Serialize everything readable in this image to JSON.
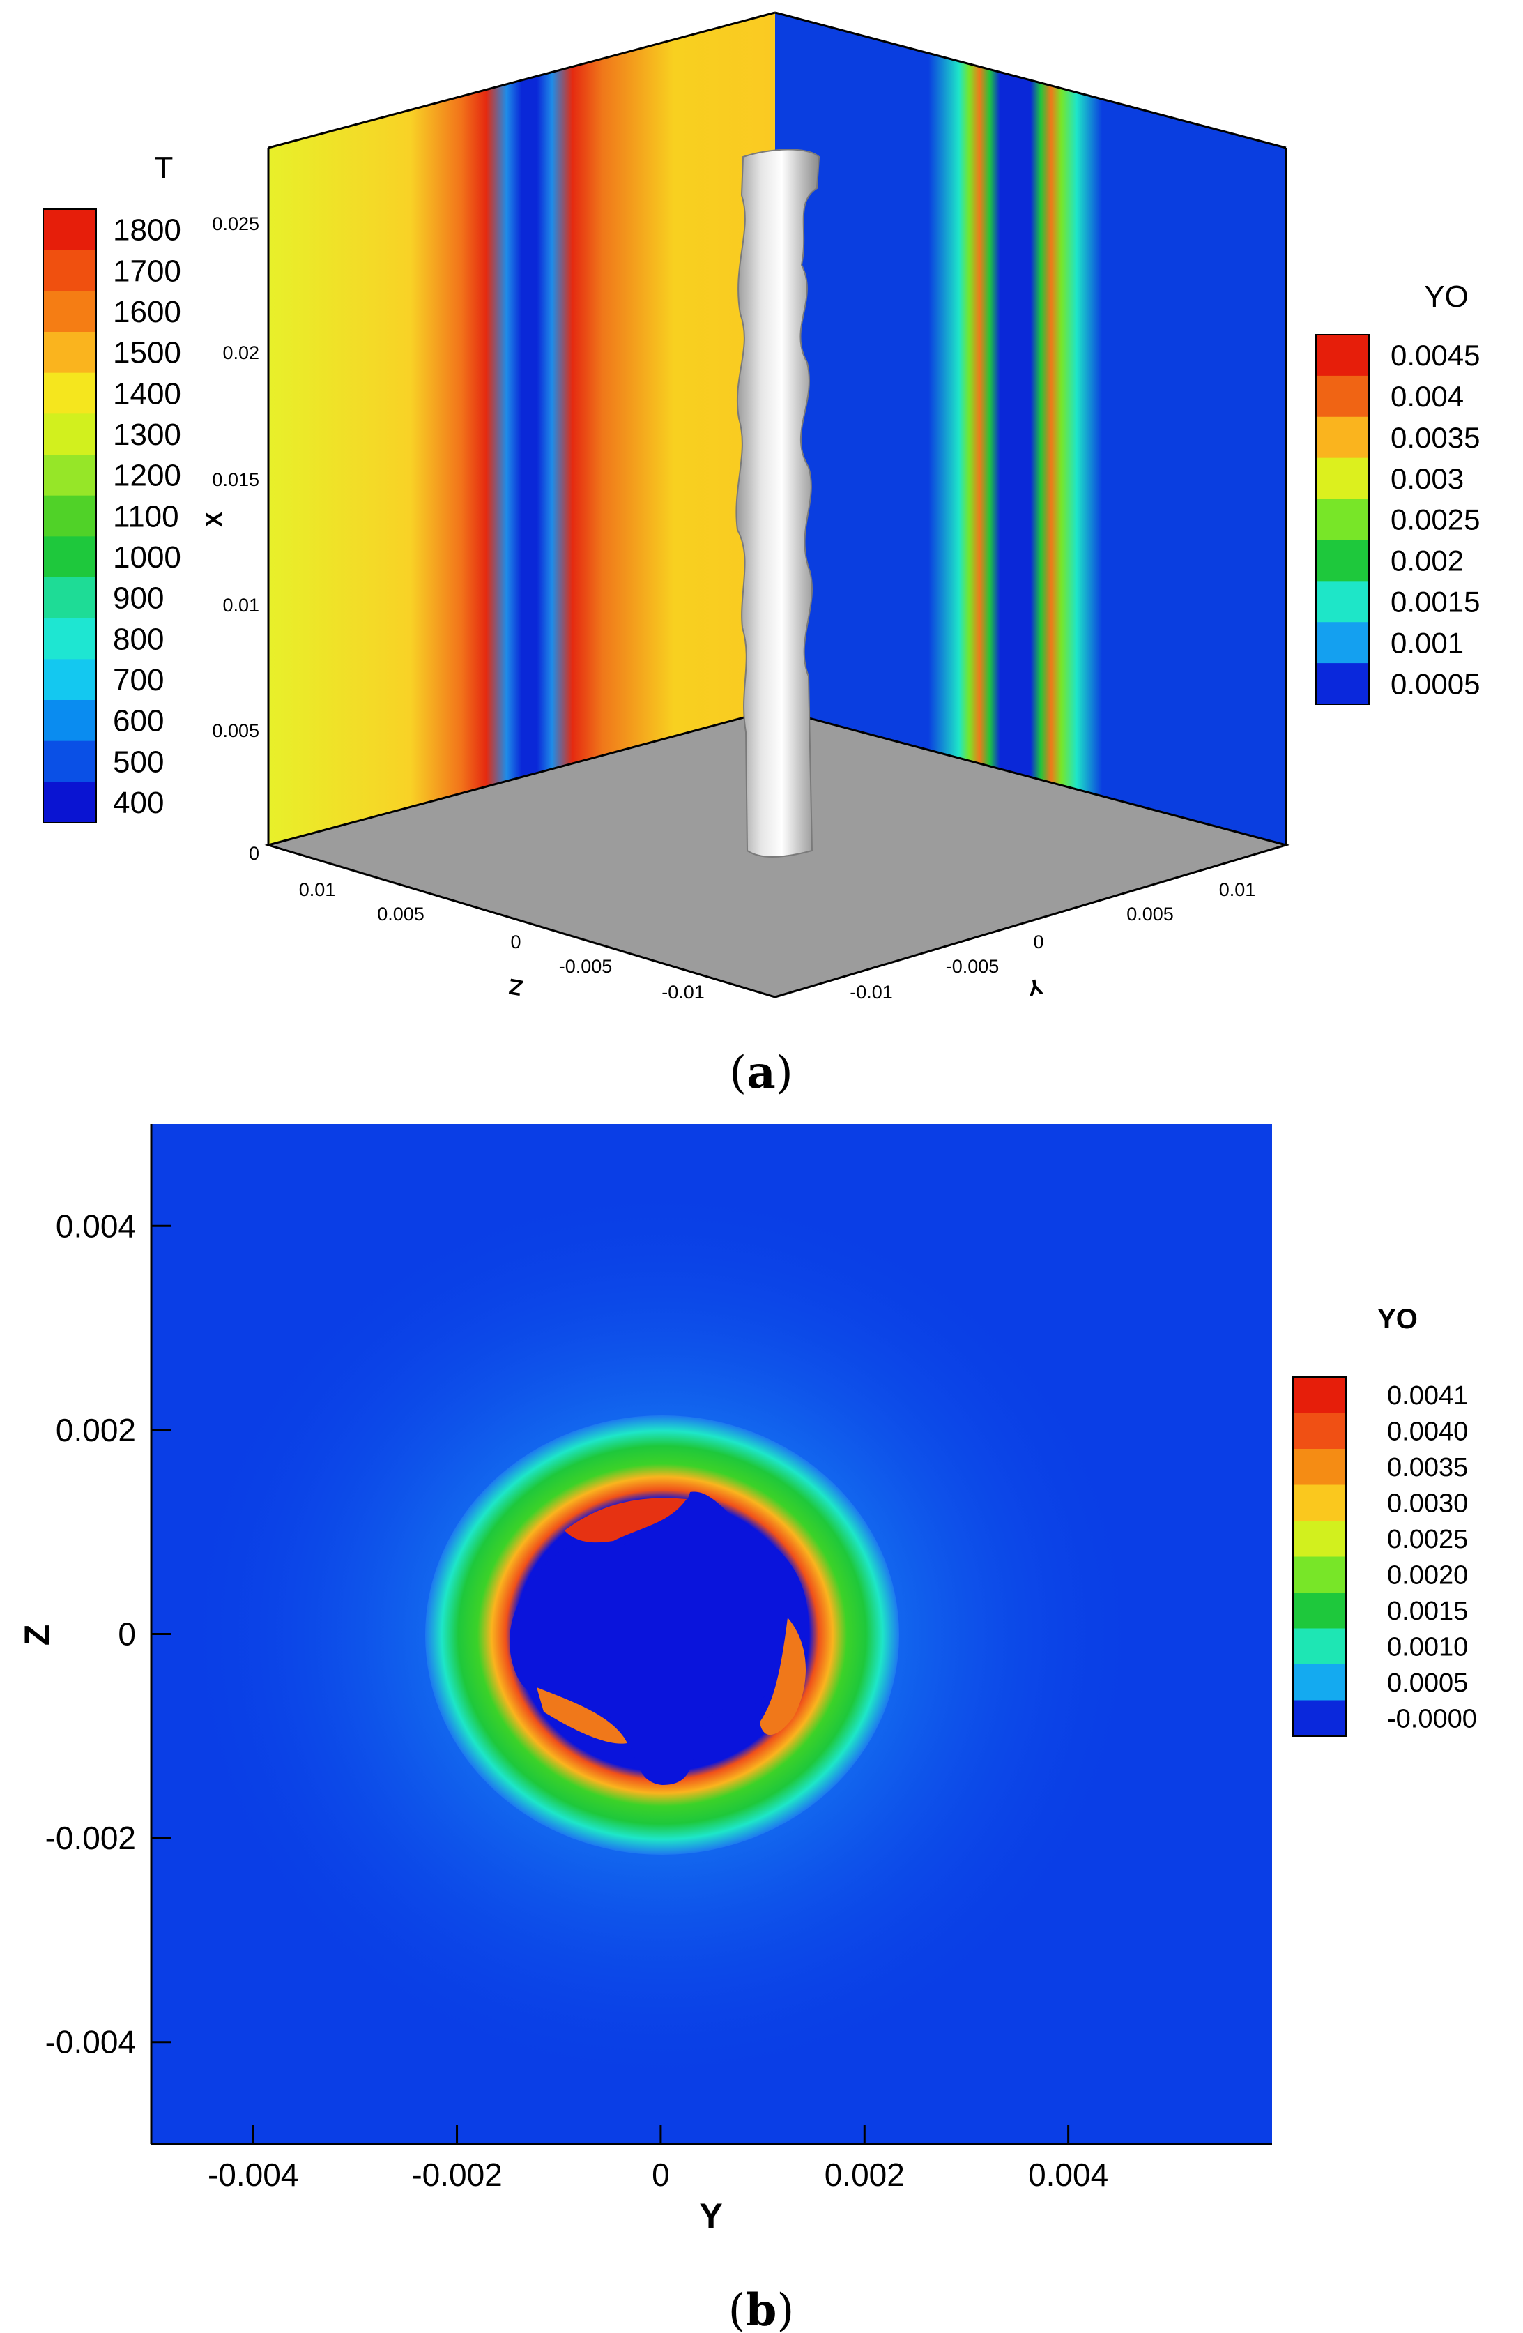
{
  "panels": {
    "a": {
      "caption_open": "(",
      "caption_letter": "a",
      "caption_close": ")",
      "colorbar_T": {
        "title": "T",
        "labels": [
          "1800",
          "1700",
          "1600",
          "1500",
          "1400",
          "1300",
          "1200",
          "1100",
          "1000",
          "900",
          "800",
          "700",
          "600",
          "500",
          "400"
        ],
        "colors": [
          "#e61e0a",
          "#f0500f",
          "#f57d14",
          "#fab41e",
          "#f5e61e",
          "#d2f01e",
          "#96e628",
          "#50d228",
          "#1ec83c",
          "#1edc96",
          "#1ee6d2",
          "#14c8f0",
          "#0a8cf0",
          "#0a50e6",
          "#0a14d2"
        ]
      },
      "colorbar_YO": {
        "title": "YO",
        "labels": [
          "0.0045",
          "0.004",
          "0.0035",
          "0.003",
          "0.0025",
          "0.002",
          "0.0015",
          "0.001",
          "0.0005"
        ],
        "colors": [
          "#e61e0a",
          "#f06414",
          "#fab41e",
          "#dcf01e",
          "#78e628",
          "#1ec83c",
          "#1ee6c8",
          "#14a0f0",
          "#0a28dc"
        ]
      },
      "x_axis": {
        "label": "X",
        "ticks": [
          "0.025",
          "0.02",
          "0.015",
          "0.01",
          "0.005",
          "0"
        ]
      },
      "z_axis": {
        "label": "Z",
        "ticks": [
          "0.01",
          "0.005",
          "0",
          "-0.005",
          "-0.01"
        ]
      },
      "y_axis": {
        "label": "Y",
        "ticks": [
          "-0.01",
          "-0.005",
          "0",
          "0.005",
          "0.01"
        ]
      }
    },
    "b": {
      "caption_open": "(",
      "caption_letter": "b",
      "caption_close": ")",
      "colorbar_YO": {
        "title": "YO",
        "labels": [
          "0.0041",
          "0.0040",
          "0.0035",
          "0.0030",
          "0.0025",
          "0.0020",
          "0.0015",
          "0.0010",
          "0.0005",
          "-0.0000"
        ],
        "colors": [
          "#e61e0a",
          "#f05014",
          "#f58c14",
          "#fac81e",
          "#d2f01e",
          "#78e628",
          "#1ec83c",
          "#1ee6b4",
          "#14aaf0",
          "#0a28dc"
        ]
      }
    }
  },
  "chart_data": [
    {
      "type": "heatmap",
      "title": "",
      "description_kind": "3D contour planes with isosurface",
      "variables": [
        "T",
        "YO"
      ],
      "axes": {
        "x": "X",
        "y": "Y",
        "z": "Z"
      },
      "xlim": [
        0,
        0.027
      ],
      "ylim": [
        -0.0125,
        0.0125
      ],
      "zlim": [
        -0.0125,
        0.0125
      ],
      "colorbar_T_range": [
        400,
        1800
      ],
      "colorbar_YO_range": [
        0.0005,
        0.0045
      ]
    },
    {
      "type": "heatmap",
      "title": "",
      "variable": "YO",
      "xlabel": "Y",
      "ylabel": "Z",
      "xlim": [
        -0.005,
        0.006
      ],
      "ylim": [
        -0.005,
        0.005
      ],
      "xticks": [
        "-0.004",
        "-0.002",
        "0",
        "0.002",
        "0.004"
      ],
      "yticks": [
        "0.004",
        "0.002",
        "0",
        "-0.002",
        "-0.004"
      ],
      "colorbar_range": [
        0,
        0.0041
      ],
      "ring_center": [
        0.0,
        0.0
      ],
      "ring_outer_radius": 0.0021,
      "ring_inner_radius": 0.0013,
      "grid": false
    }
  ]
}
